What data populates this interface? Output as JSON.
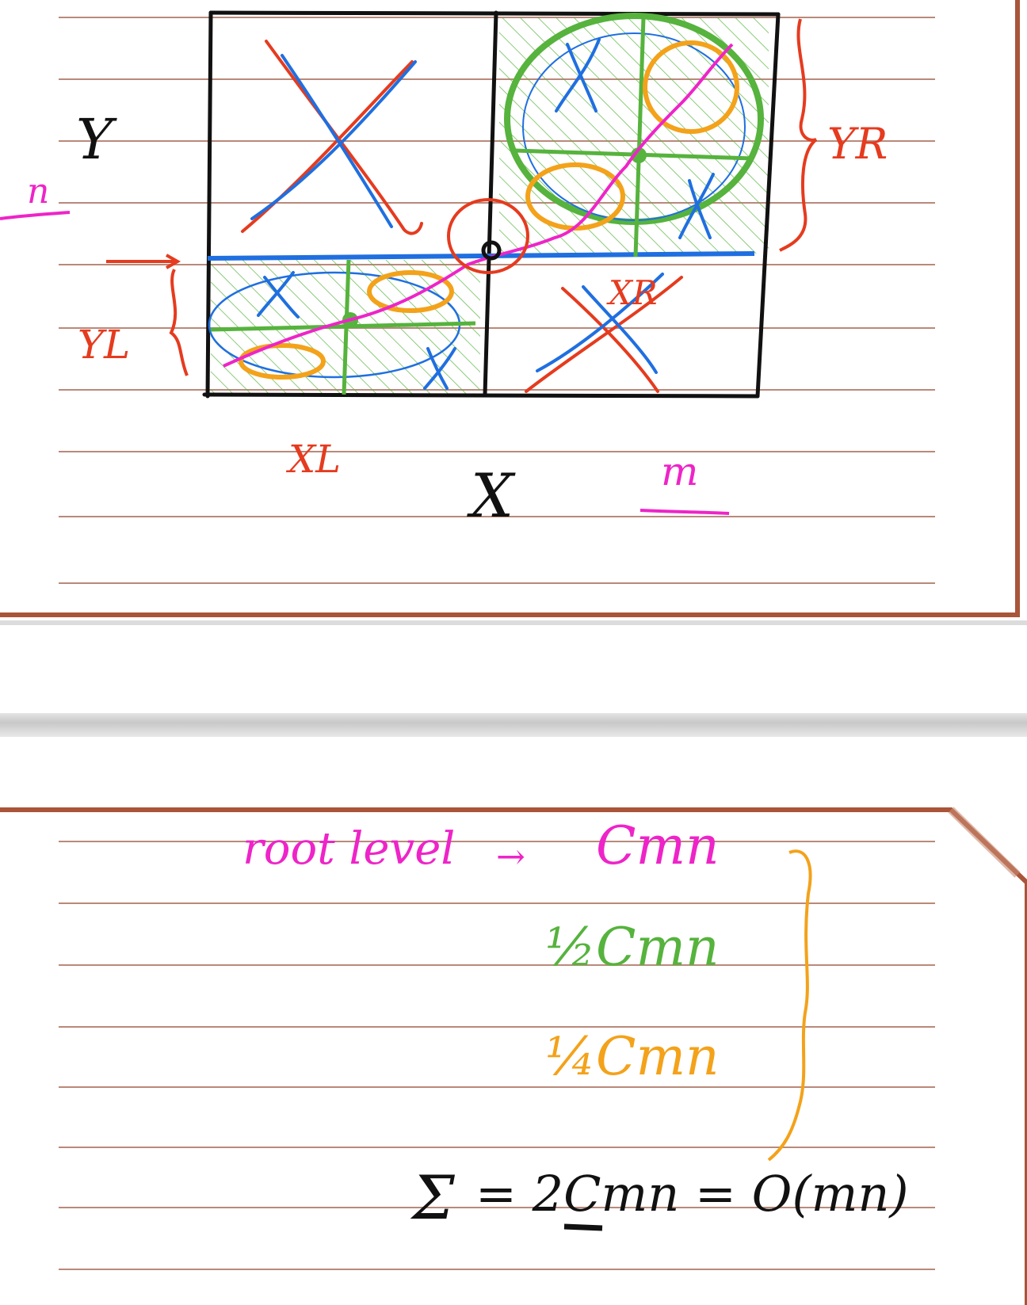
{
  "colors": {
    "ruled_line": "#b9897a",
    "card_border": "#a9553a",
    "ink_black": "#111111",
    "ink_blue": "#1f6fe0",
    "ink_red": "#e53b1f",
    "ink_green": "#56b33d",
    "ink_orange": "#f3a21a",
    "ink_magenta": "#ee24c8"
  },
  "page1": {
    "label_n": "n",
    "label_Y": "Y",
    "label_YL": "YL",
    "label_XL": "XL",
    "label_X": "X",
    "label_m": "m",
    "label_YR": "YR",
    "label_XR": "XR",
    "mark_x": "X"
  },
  "page2": {
    "root_level": "root level",
    "arrow": "→",
    "cost_root": "Cmn",
    "cost_half": "½Cmn",
    "cost_quarter": "¼Cmn",
    "sum_symbol": "Σ",
    "sum_expr": "= 2Cmn = O(mn)"
  }
}
